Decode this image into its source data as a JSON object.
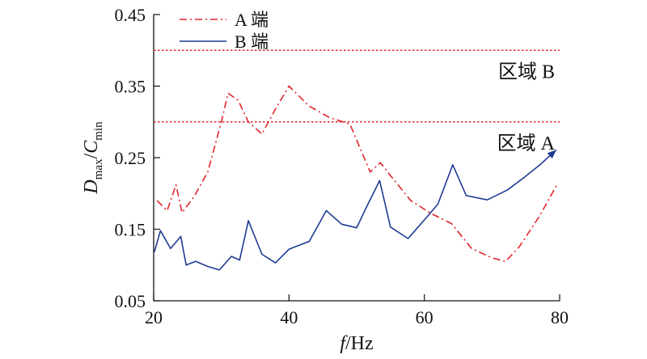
{
  "chart_data": {
    "type": "line",
    "xlabel_italic": "f",
    "xlabel_rest": "/Hz",
    "ylabel": {
      "d": "D",
      "d_sub": "max",
      "slash": "/",
      "c": "C",
      "c_sub": "min"
    },
    "xlim": [
      20,
      80
    ],
    "ylim": [
      0.05,
      0.45
    ],
    "xticks": [
      20,
      40,
      60,
      80
    ],
    "xtick_labels": [
      "20",
      "40",
      "60",
      "80"
    ],
    "yticks": [
      0.05,
      0.15,
      0.25,
      0.35,
      0.45
    ],
    "ytick_labels": [
      "0.05",
      "0.15",
      "0.25",
      "0.35",
      "0.45"
    ],
    "grid": false,
    "legend_position": "top-left",
    "series": [
      {
        "name": "A 端",
        "color": "#e0262b",
        "style": "dash-dot",
        "x": [
          20.5,
          22,
          23.3,
          24.2,
          26,
          28,
          30,
          31,
          32.5,
          34,
          36,
          38,
          40,
          43,
          46,
          49,
          52,
          53.5,
          55,
          58,
          61,
          64,
          67,
          70,
          72,
          74,
          77,
          79.7
        ],
        "y": [
          0.19,
          0.176,
          0.212,
          0.173,
          0.196,
          0.23,
          0.3,
          0.34,
          0.33,
          0.3,
          0.283,
          0.318,
          0.35,
          0.322,
          0.306,
          0.297,
          0.23,
          0.243,
          0.225,
          0.19,
          0.172,
          0.158,
          0.123,
          0.11,
          0.105,
          0.125,
          0.168,
          0.214
        ]
      },
      {
        "name": "B 端",
        "color": "#1f3a93",
        "style": "solid",
        "x": [
          20.1,
          21,
          22.5,
          24,
          24.8,
          26.2,
          28,
          29.7,
          31.5,
          32.7,
          34,
          36,
          38,
          40,
          43,
          45.5,
          47.8,
          50,
          51.3,
          53.4,
          55,
          57.6,
          60,
          62,
          64.2,
          66.2,
          69.3,
          72.3,
          74.7,
          77.2,
          79.5
        ],
        "y": [
          0.118,
          0.148,
          0.123,
          0.14,
          0.1,
          0.105,
          0.098,
          0.093,
          0.112,
          0.107,
          0.162,
          0.115,
          0.103,
          0.122,
          0.133,
          0.176,
          0.157,
          0.152,
          0.178,
          0.218,
          0.153,
          0.137,
          0.163,
          0.185,
          0.24,
          0.197,
          0.191,
          0.205,
          0.222,
          0.241,
          0.261
        ]
      }
    ],
    "reference_lines": [
      {
        "y": 0.4,
        "color": "#e0262b",
        "style": "dotted",
        "label": "区域 B"
      },
      {
        "y": 0.3,
        "color": "#e0262b",
        "style": "dotted",
        "label": "区域 A"
      }
    ]
  }
}
